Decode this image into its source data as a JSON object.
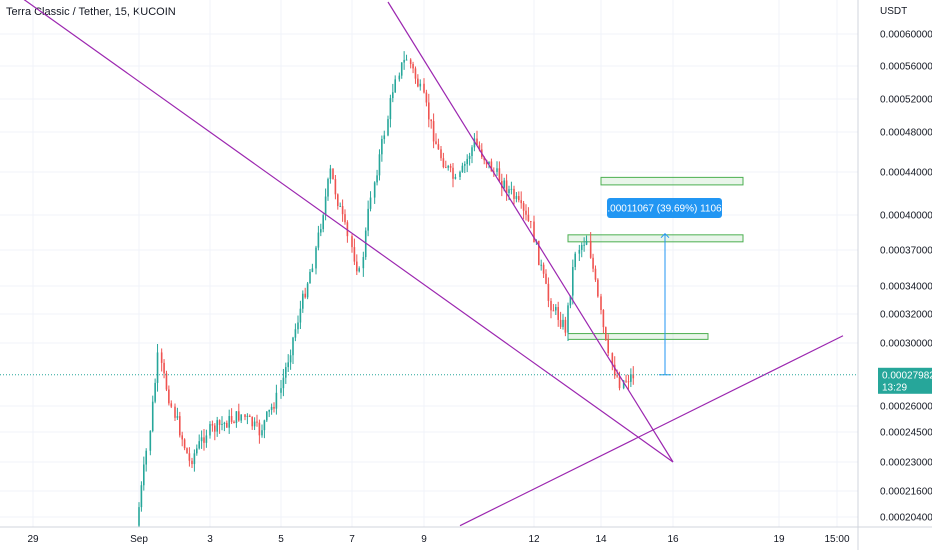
{
  "header": {
    "title": "Terra Classic / Tether, 15, KUCOIN"
  },
  "chart_data": {
    "type": "candlestick",
    "symbol": "Terra Classic / Tether",
    "interval": "15",
    "exchange": "KUCOIN",
    "yunit": "USDT",
    "y_ticks": [
      "0.00060000",
      "0.00056000",
      "0.00052000",
      "0.00048000",
      "0.00044000",
      "0.00040000",
      "0.00037000",
      "0.00034000",
      "0.00032000",
      "0.00030000",
      "0.00026000",
      "0.00024500",
      "0.00023000",
      "0.00021600",
      "0.00020400"
    ],
    "x_ticks": [
      "29",
      "Sep",
      "3",
      "5",
      "7",
      "9",
      "12",
      "14",
      "16",
      "19",
      "15:00"
    ],
    "current_price": "0.00027982",
    "countdown": "13:29",
    "measure_label": "0.00011067 (39.69%) 11067",
    "colors": {
      "up": "#26a69a",
      "down": "#ef5350",
      "trendline": "#9c27b0",
      "zone": "#4caf50",
      "measure": "#2196f3",
      "price_line": "#26a69a"
    },
    "trendlines": [
      {
        "from": [
          "Aug 28",
          0.00066
        ],
        "to": [
          "Sep 16",
          0.00023
        ]
      },
      {
        "from": [
          "Sep 8",
          0.00064
        ],
        "to": [
          "Sep 16",
          0.00023
        ]
      },
      {
        "from": [
          "Sep 10",
          0.0002
        ],
        "to": [
          "Sep 20",
          0.000305
        ]
      }
    ],
    "zones": [
      {
        "top": 0.000435,
        "bottom": 0.000428,
        "from": "Sep 14",
        "to": "Sep 18"
      },
      {
        "top": 0.000383,
        "bottom": 0.000377,
        "from": "Sep 13",
        "to": "Sep 18"
      },
      {
        "top": 0.0003065,
        "bottom": 0.0003025,
        "from": "Sep 13",
        "to": "Sep 17"
      }
    ],
    "price_path": [
      {
        "t": "Sep 1",
        "price": 0.0002
      },
      {
        "t": "Sep 1",
        "price": 0.000235
      },
      {
        "t": "Sep 1",
        "price": 0.00029
      },
      {
        "t": "Sep 2",
        "price": 0.00026
      },
      {
        "t": "Sep 2",
        "price": 0.00023
      },
      {
        "t": "Sep 3",
        "price": 0.000245
      },
      {
        "t": "Sep 4",
        "price": 0.000255
      },
      {
        "t": "Sep 4",
        "price": 0.000245
      },
      {
        "t": "Sep 5",
        "price": 0.000265
      },
      {
        "t": "Sep 5",
        "price": 0.00031
      },
      {
        "t": "Sep 6",
        "price": 0.00036
      },
      {
        "t": "Sep 6",
        "price": 0.00044
      },
      {
        "t": "Sep 7",
        "price": 0.00038
      },
      {
        "t": "Sep 7",
        "price": 0.00035
      },
      {
        "t": "Sep 7",
        "price": 0.00042
      },
      {
        "t": "Sep 8",
        "price": 0.00048
      },
      {
        "t": "Sep 8",
        "price": 0.00055
      },
      {
        "t": "Sep 8",
        "price": 0.00057
      },
      {
        "t": "Sep 9",
        "price": 0.00053
      },
      {
        "t": "Sep 9",
        "price": 0.00046
      },
      {
        "t": "Sep 10",
        "price": 0.00043
      },
      {
        "t": "Sep 10",
        "price": 0.00047
      },
      {
        "t": "Sep 11",
        "price": 0.00044
      },
      {
        "t": "Sep 11",
        "price": 0.00042
      },
      {
        "t": "Sep 12",
        "price": 0.00039
      },
      {
        "t": "Sep 12",
        "price": 0.00033
      },
      {
        "t": "Sep 13",
        "price": 0.00031
      },
      {
        "t": "Sep 13",
        "price": 0.00037
      },
      {
        "t": "Sep 13",
        "price": 0.00038
      },
      {
        "t": "Sep 14",
        "price": 0.00033
      },
      {
        "t": "Sep 14",
        "price": 0.00029
      },
      {
        "t": "Sep 14",
        "price": 0.000275
      },
      {
        "t": "Sep 15",
        "price": 0.00027982
      }
    ]
  }
}
